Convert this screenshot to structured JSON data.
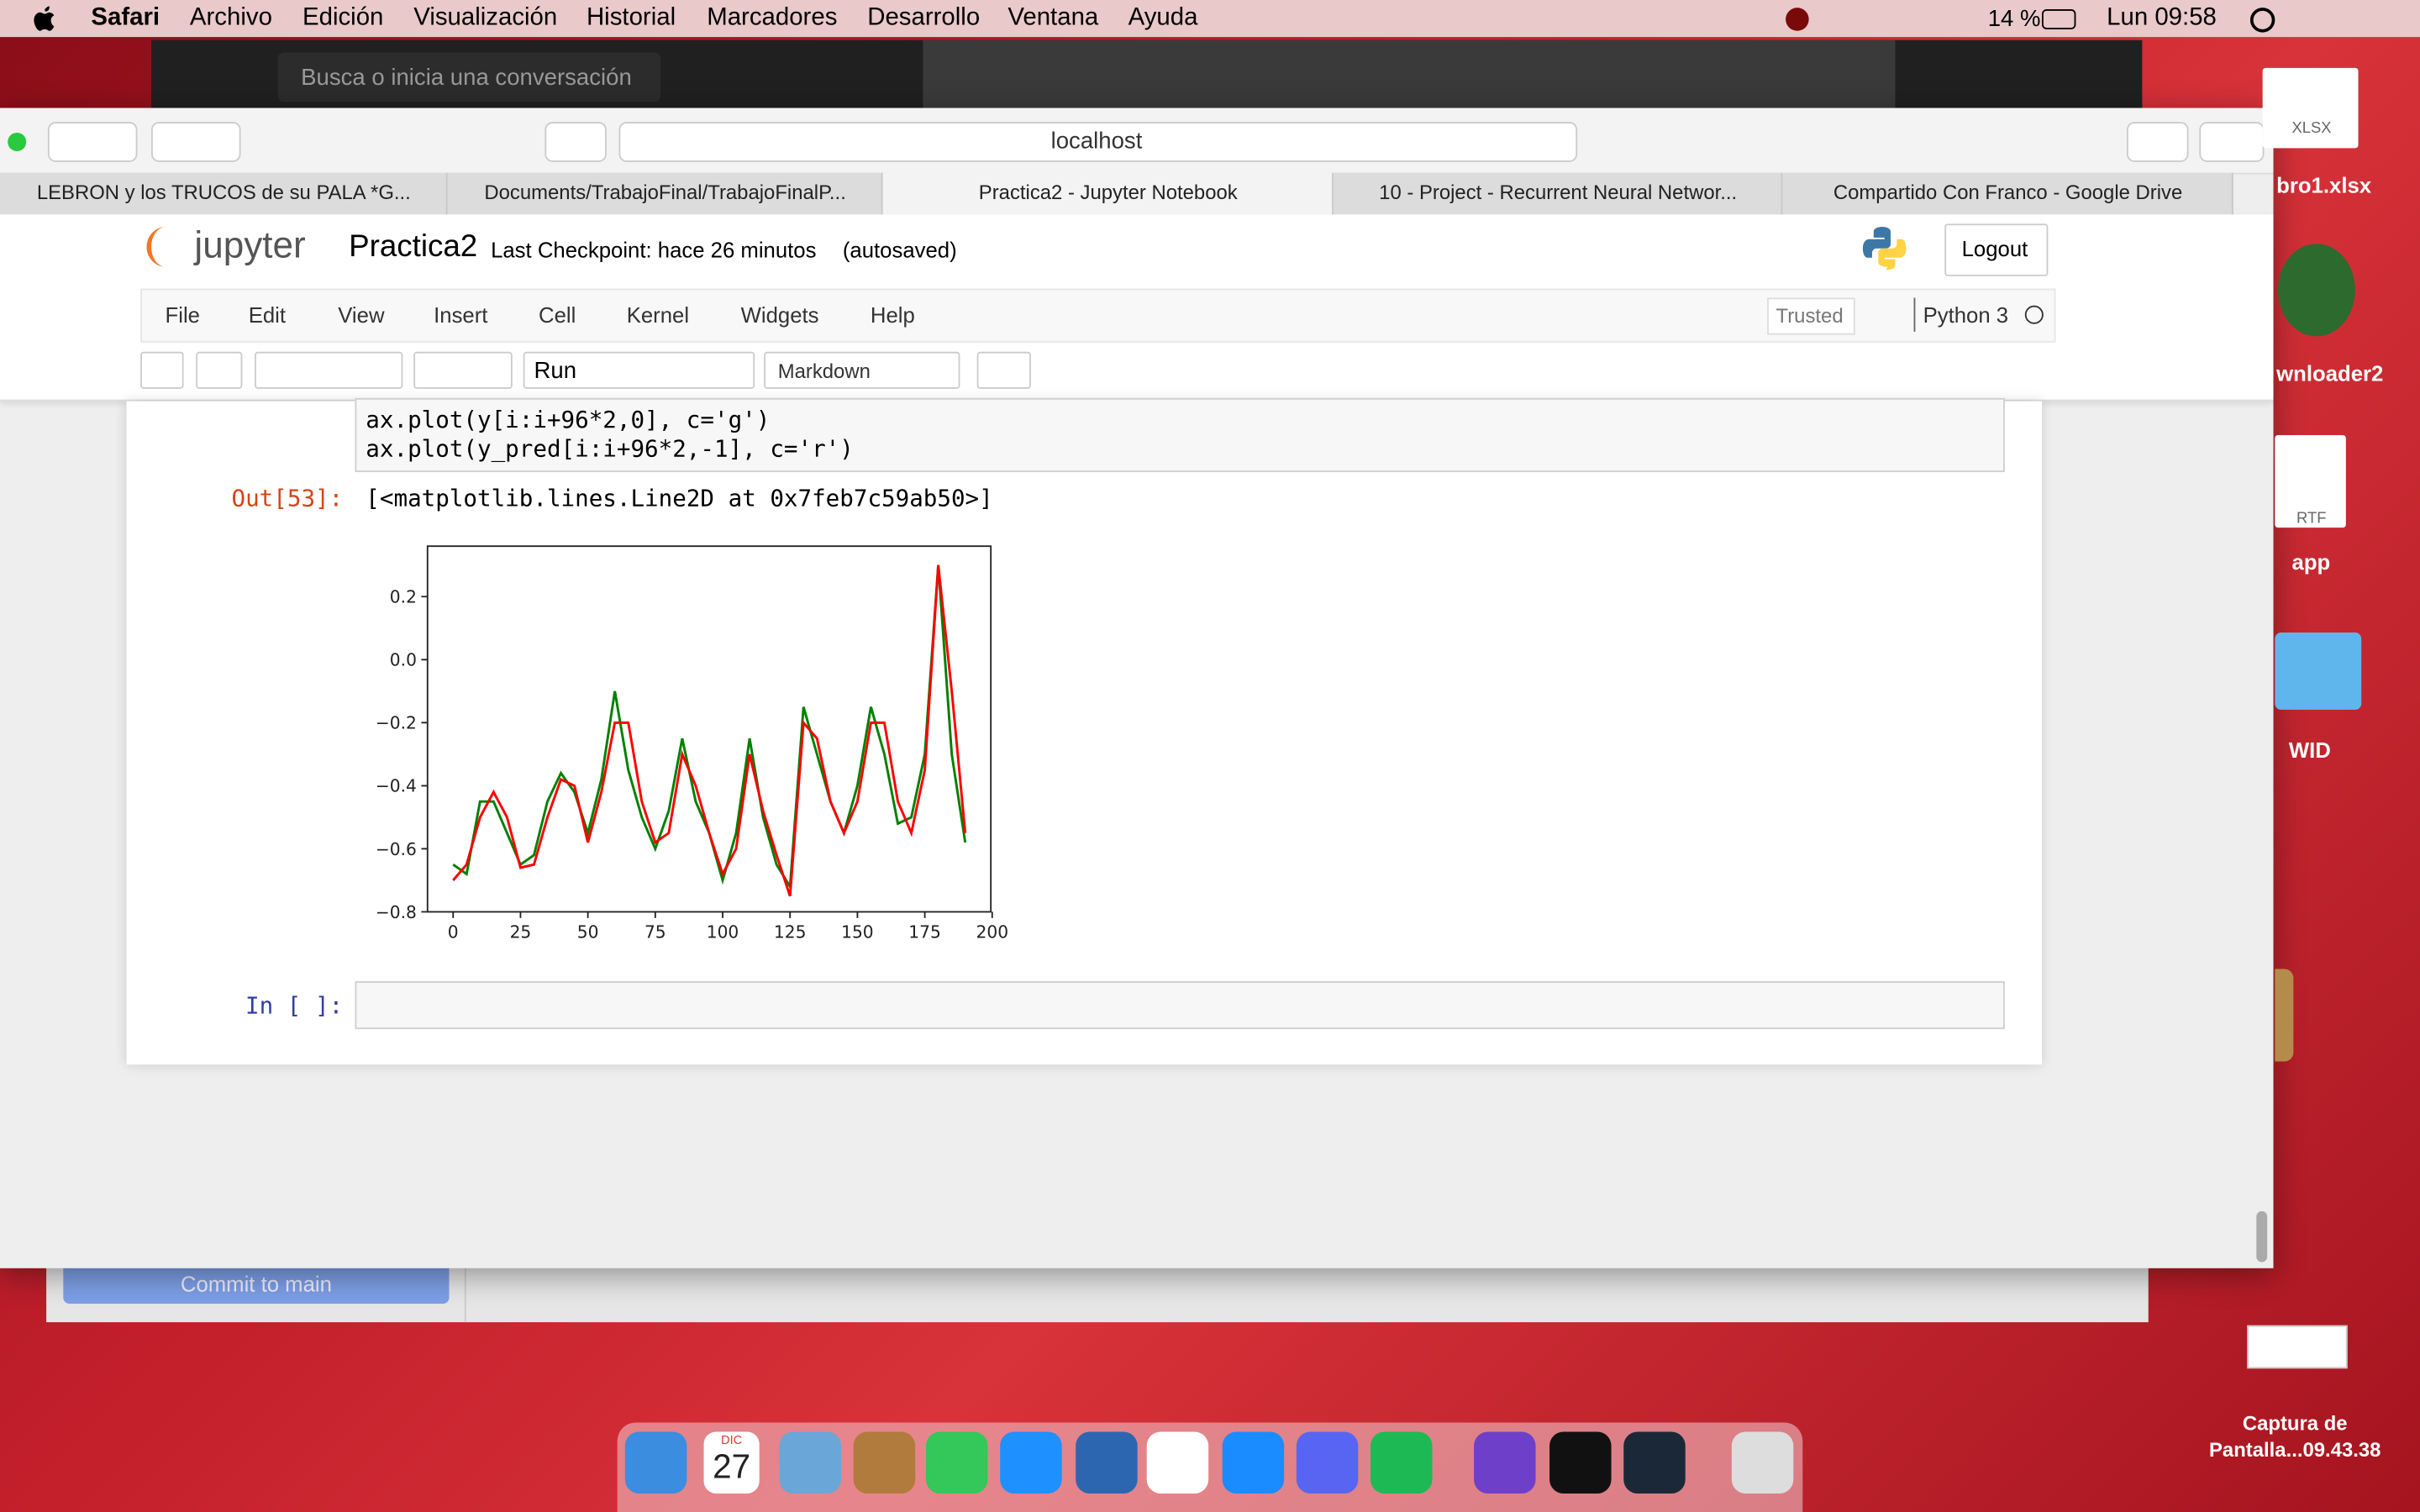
{
  "menu_bar": {
    "app": "Safari",
    "items": [
      "Archivo",
      "Edición",
      "Visualización",
      "Historial",
      "Marcadores",
      "Desarrollo",
      "Ventana",
      "Ayuda"
    ],
    "battery": "14 %",
    "clock": "Lun 09:58"
  },
  "background_windows": {
    "search_placeholder": "Busca o inicia una conversación",
    "commit_button": "Commit to main"
  },
  "browser": {
    "address": "localhost",
    "tabs": [
      "LEBRON y los TRUCOS de su PALA *G...",
      "Documents/TrabajoFinal/TrabajoFinalP...",
      "Practica2 - Jupyter Notebook",
      "10 - Project - Recurrent Neural Networ...",
      "Compartido Con Franco - Google Drive"
    ]
  },
  "jupyter": {
    "logo": "jupyter",
    "notebook_name": "Practica2",
    "checkpoint": "Last Checkpoint: hace 26 minutos",
    "autosaved": "(autosaved)",
    "logout": "Logout",
    "menu": [
      "File",
      "Edit",
      "View",
      "Insert",
      "Cell",
      "Kernel",
      "Widgets",
      "Help"
    ],
    "trusted": "Trusted",
    "kernel": "Python 3",
    "toolbar": {
      "run": "Run",
      "cell_type": "Markdown"
    },
    "cells": {
      "code_lines": [
        "ax.plot(y[i:i+96*2,0], c='g')",
        "ax.plot(y_pred[i:i+96*2,-1], c='r')"
      ],
      "out_prompt": "Out[53]:",
      "out_text": "[<matplotlib.lines.Line2D at 0x7feb7c59ab50>]",
      "in_prompt": "In [ ]:"
    }
  },
  "chart_data": {
    "type": "line",
    "x": [
      0,
      5,
      10,
      15,
      20,
      25,
      30,
      35,
      40,
      45,
      50,
      55,
      60,
      65,
      70,
      75,
      80,
      85,
      90,
      95,
      100,
      105,
      110,
      115,
      120,
      125,
      130,
      135,
      140,
      145,
      150,
      155,
      160,
      165,
      170,
      175,
      180,
      185,
      190
    ],
    "series": [
      {
        "color": "green",
        "values": [
          -0.65,
          -0.68,
          -0.45,
          -0.45,
          -0.55,
          -0.65,
          -0.62,
          -0.45,
          -0.36,
          -0.42,
          -0.55,
          -0.38,
          -0.1,
          -0.35,
          -0.5,
          -0.6,
          -0.48,
          -0.25,
          -0.45,
          -0.55,
          -0.7,
          -0.55,
          -0.25,
          -0.5,
          -0.65,
          -0.72,
          -0.15,
          -0.3,
          -0.45,
          -0.55,
          -0.4,
          -0.15,
          -0.3,
          -0.52,
          -0.5,
          -0.3,
          0.3,
          -0.3,
          -0.58
        ]
      },
      {
        "color": "red",
        "values": [
          -0.7,
          -0.65,
          -0.5,
          -0.42,
          -0.5,
          -0.66,
          -0.65,
          -0.5,
          -0.38,
          -0.4,
          -0.58,
          -0.42,
          -0.2,
          -0.2,
          -0.45,
          -0.58,
          -0.55,
          -0.3,
          -0.4,
          -0.55,
          -0.68,
          -0.6,
          -0.3,
          -0.48,
          -0.62,
          -0.75,
          -0.2,
          -0.25,
          -0.45,
          -0.55,
          -0.45,
          -0.2,
          -0.2,
          -0.45,
          -0.55,
          -0.35,
          0.3,
          -0.1,
          -0.55
        ]
      }
    ],
    "xlim": [
      -9.5,
      199.5
    ],
    "ylim": [
      -0.8,
      0.36
    ],
    "xticks": [
      0,
      25,
      50,
      75,
      100,
      125,
      150,
      175,
      200
    ],
    "yticks": [
      {
        "value": -0.8,
        "label": "−0.8"
      },
      {
        "value": -0.6,
        "label": "−0.6"
      },
      {
        "value": -0.4,
        "label": "−0.4"
      },
      {
        "value": -0.2,
        "label": "−0.2"
      },
      {
        "value": 0,
        "label": "0.0"
      },
      0.2
    ]
  },
  "desktop": {
    "icons": [
      "XLSX",
      "bro1.xlsx",
      "wnloader2",
      "RTF",
      "app",
      "WID"
    ],
    "screenshot_label": [
      "Captura de",
      "Pantalla...09.43.38"
    ]
  },
  "dock": {
    "calendar_month": "DIC",
    "calendar_day": "27"
  }
}
